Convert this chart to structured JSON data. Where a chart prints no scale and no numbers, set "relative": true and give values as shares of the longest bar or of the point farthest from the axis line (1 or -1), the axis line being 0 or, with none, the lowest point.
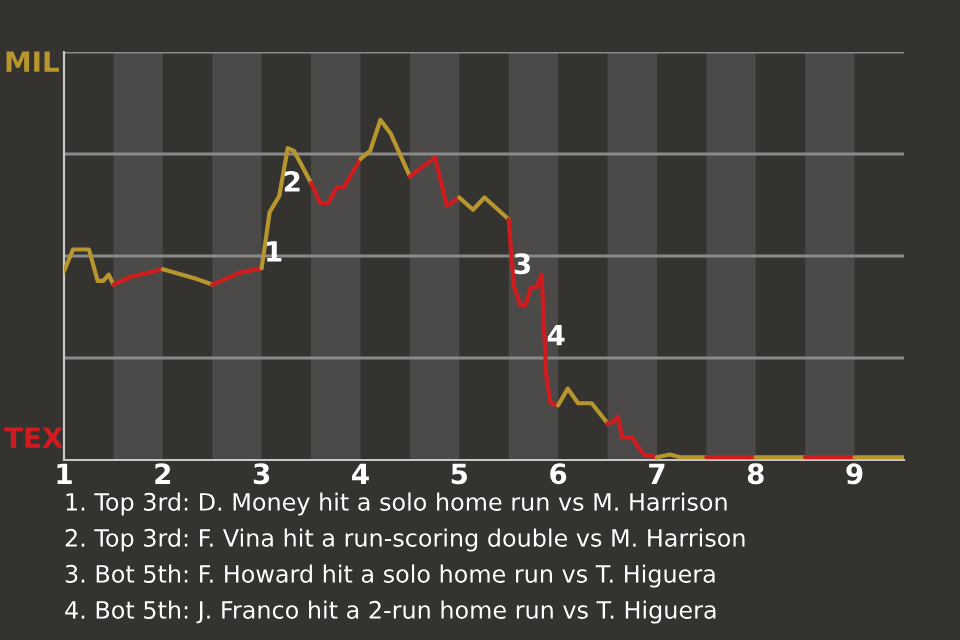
{
  "chart_data": {
    "type": "line",
    "relative": true,
    "xlim": [
      1,
      9.5
    ],
    "xticks": [
      1,
      2,
      3,
      4,
      5,
      6,
      7,
      8,
      9
    ],
    "grid": false,
    "series": [
      {
        "color": "#b8962e",
        "x": [
          1,
          1.091,
          1.253,
          1.34,
          1.397,
          1.453,
          1.5
        ],
        "values": [
          0.555,
          0.619,
          0.619,
          0.527,
          0.527,
          0.545,
          0.516
        ]
      },
      {
        "color": "#d01c1f",
        "x": [
          1.5,
          1.678,
          2.0
        ],
        "values": [
          0.516,
          0.539,
          0.561
        ]
      },
      {
        "color": "#b8962e",
        "x": [
          2.0,
          2.346,
          2.5
        ],
        "values": [
          0.561,
          0.532,
          0.516
        ]
      },
      {
        "color": "#d01c1f",
        "x": [
          2.5,
          2.781,
          3.0
        ],
        "values": [
          0.516,
          0.551,
          0.564
        ]
      },
      {
        "color": "#b8962e",
        "x": [
          3.0,
          3.081,
          3.178,
          3.264,
          3.328,
          3.5
        ],
        "values": [
          0.564,
          0.729,
          0.776,
          0.917,
          0.909,
          0.815
        ]
      },
      {
        "color": "#d01c1f",
        "x": [
          3.5,
          3.592,
          3.673,
          3.763,
          3.834,
          4.0
        ],
        "values": [
          0.815,
          0.756,
          0.756,
          0.803,
          0.803,
          0.886
        ]
      },
      {
        "color": "#b8962e",
        "x": [
          4.0,
          4.098,
          4.202,
          4.306,
          4.5
        ],
        "values": [
          0.886,
          0.909,
          1.0,
          0.96,
          0.834
        ]
      },
      {
        "color": "#d01c1f",
        "x": [
          4.5,
          4.755,
          4.874,
          5.0
        ],
        "values": [
          0.834,
          0.89,
          0.748,
          0.772
        ]
      },
      {
        "color": "#b8962e",
        "x": [
          5.0,
          5.139,
          5.255,
          5.5
        ],
        "values": [
          0.772,
          0.736,
          0.772,
          0.708
        ]
      },
      {
        "color": "#d01c1f",
        "x": [
          5.5,
          5.525,
          5.554,
          5.616,
          5.671,
          5.725,
          5.779,
          5.834,
          5.851,
          5.88,
          5.924,
          6.0
        ],
        "values": [
          0.708,
          0.61,
          0.511,
          0.456,
          0.456,
          0.508,
          0.508,
          0.545,
          0.433,
          0.248,
          0.167,
          0.161
        ]
      },
      {
        "color": "#b8962e",
        "x": [
          6.0,
          6.098,
          6.202,
          6.34,
          6.5
        ],
        "values": [
          0.161,
          0.21,
          0.167,
          0.167,
          0.108
        ]
      },
      {
        "color": "#d01c1f",
        "x": [
          6.5,
          6.556,
          6.605,
          6.647,
          6.752,
          6.817,
          6.866,
          7.0
        ],
        "values": [
          0.108,
          0.112,
          0.128,
          0.068,
          0.065,
          0.036,
          0.016,
          0.008
        ]
      },
      {
        "color": "#b8962e",
        "x": [
          7.0,
          7.131,
          7.235,
          7.5
        ],
        "values": [
          0.008,
          0.016,
          0.008,
          0.008
        ]
      },
      {
        "color": "#d01c1f",
        "x": [
          7.5,
          8.0
        ],
        "values": [
          0.008,
          0.008
        ]
      },
      {
        "color": "#b8962e",
        "x": [
          8.0,
          8.5
        ],
        "values": [
          0.008,
          0.008
        ]
      },
      {
        "color": "#d01c1f",
        "x": [
          8.5,
          9.0
        ],
        "values": [
          0.008,
          0.008
        ]
      },
      {
        "color": "#b8962e",
        "x": [
          9.0,
          9.5
        ],
        "values": [
          0.008,
          0.008
        ]
      }
    ],
    "ref_lines": [
      {
        "axis": "y",
        "value": 0.3,
        "color": "#8a8a8a"
      },
      {
        "axis": "y",
        "value": 0.6,
        "color": "#8a8a8a"
      },
      {
        "axis": "y",
        "value": 0.9,
        "color": "#8a8a8a"
      },
      {
        "axis": "y",
        "value": 1.2,
        "color": "#8a8a8a"
      }
    ],
    "bands": [
      {
        "axis": "x",
        "from": 1.5,
        "to": 2,
        "color": "#4b4a48"
      },
      {
        "axis": "x",
        "from": 2.5,
        "to": 3,
        "color": "#4b4a48"
      },
      {
        "axis": "x",
        "from": 3.5,
        "to": 4,
        "color": "#4b4a48"
      },
      {
        "axis": "x",
        "from": 4.5,
        "to": 5,
        "color": "#4b4a48"
      },
      {
        "axis": "x",
        "from": 5.5,
        "to": 6,
        "color": "#4b4a48"
      },
      {
        "axis": "x",
        "from": 6.5,
        "to": 7,
        "color": "#4b4a48"
      },
      {
        "axis": "x",
        "from": 7.5,
        "to": 8,
        "color": "#4b4a48"
      },
      {
        "axis": "x",
        "from": 8.5,
        "to": 9,
        "color": "#4b4a48"
      }
    ],
    "annotations": [
      {
        "text": "1",
        "x": 3.121,
        "y": 0.606
      },
      {
        "text": "2",
        "x": 3.31,
        "y": 0.812
      },
      {
        "text": "3",
        "x": 5.64,
        "y": 0.57
      },
      {
        "text": "4",
        "x": 5.98,
        "y": 0.36
      },
      "MIL",
      "TEX",
      "1. Top 3rd: D. Money hit a solo home run vs M. Harrison",
      "2. Top 3rd: F. Vina hit a run-scoring double vs M. Harrison",
      "3. Bot 5th: F. Howard hit a solo home run vs T. Higuera",
      "4. Bot 5th: J. Franco hit a 2-run home run vs T. Higuera"
    ]
  }
}
